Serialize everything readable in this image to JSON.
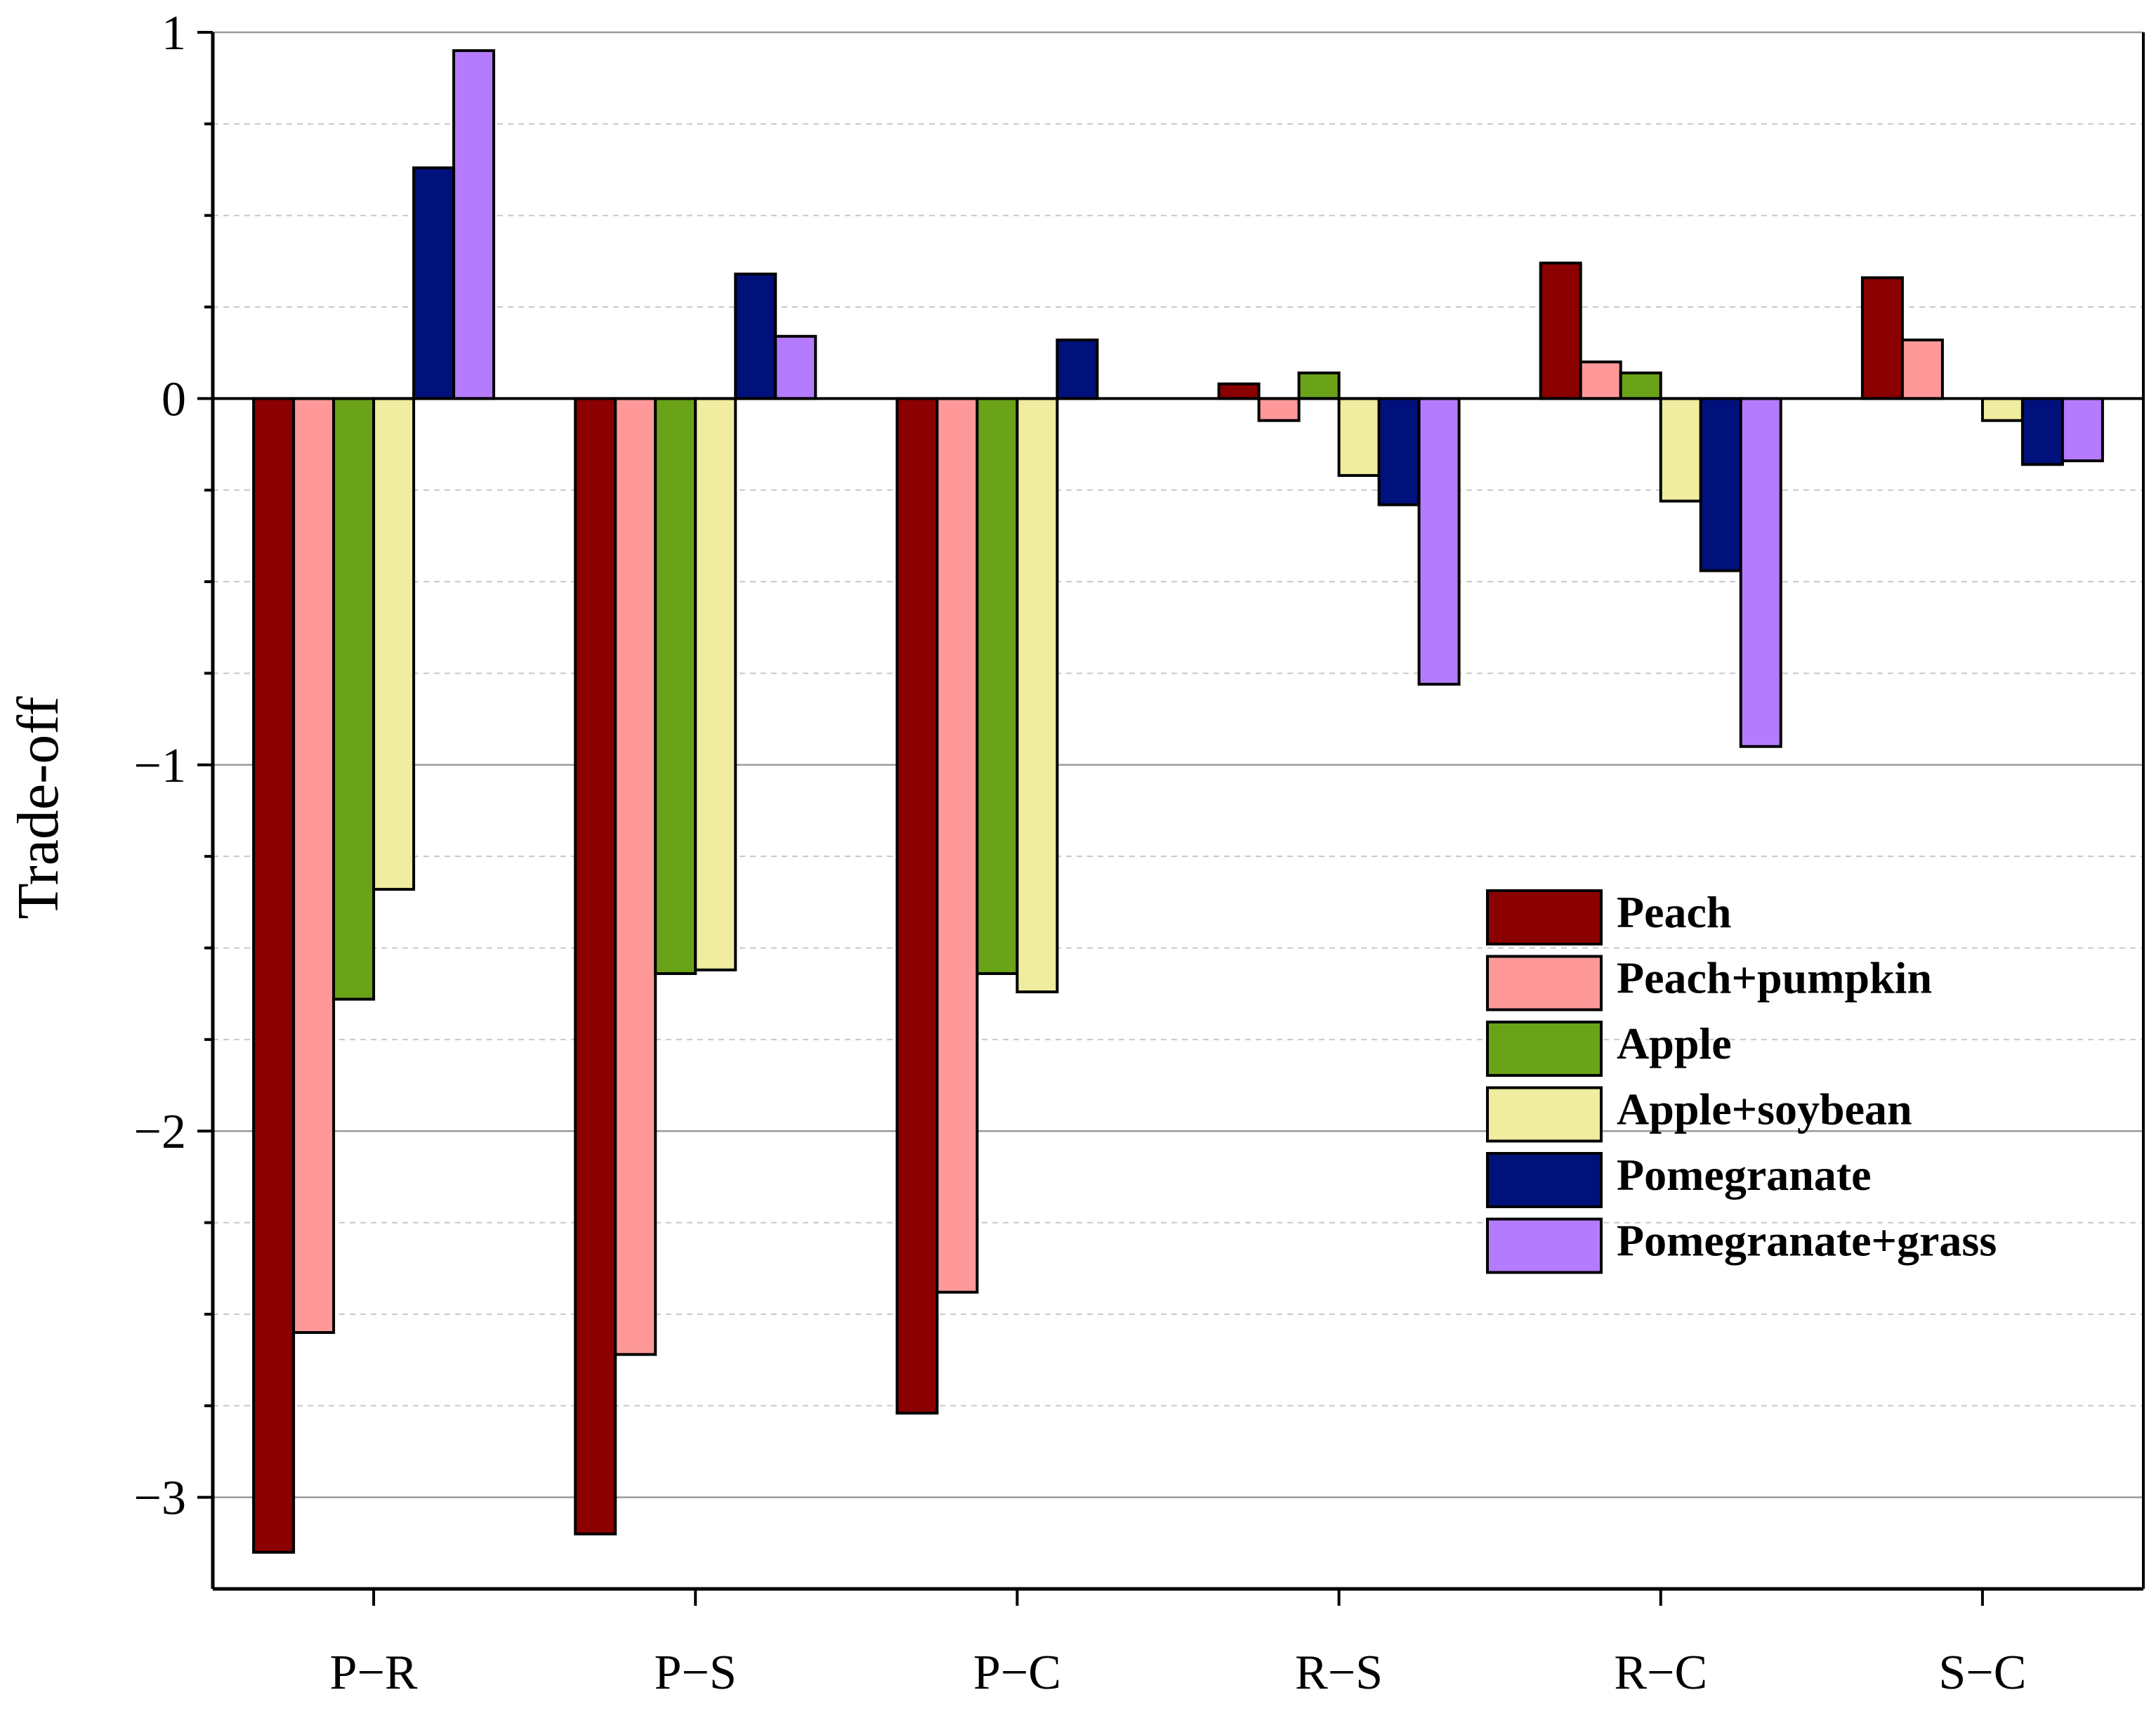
{
  "chart_data": {
    "type": "bar",
    "title": "",
    "xlabel": "",
    "ylabel": "Trade-off",
    "ylim": [
      -3.25,
      1.0
    ],
    "y_ticks": [
      1,
      0,
      -1,
      -2,
      -3
    ],
    "y_tick_labels": [
      "1",
      "0",
      "−1",
      "−2",
      "−3"
    ],
    "grid": true,
    "legend_position": "right-center",
    "categories": [
      "P−R",
      "P−S",
      "P−C",
      "R−S",
      "R−C",
      "S−C"
    ],
    "series": [
      {
        "name": "Peach",
        "color": "#8b0000",
        "values": [
          -3.15,
          -3.1,
          -2.77,
          0.04,
          0.37,
          0.33
        ]
      },
      {
        "name": "Peach+pumpkin",
        "color": "#ff9999",
        "values": [
          -2.55,
          -2.61,
          -2.44,
          -0.06,
          0.1,
          0.16
        ]
      },
      {
        "name": "Apple",
        "color": "#6aa318",
        "values": [
          -1.64,
          -1.57,
          -1.57,
          0.07,
          0.07,
          0.0
        ]
      },
      {
        "name": "Apple+soybean",
        "color": "#f0eca0",
        "values": [
          -1.34,
          -1.56,
          -1.62,
          -0.21,
          -0.28,
          -0.06
        ]
      },
      {
        "name": "Pomegranate",
        "color": "#00117c",
        "values": [
          0.63,
          0.34,
          0.16,
          -0.29,
          -0.47,
          -0.18
        ]
      },
      {
        "name": "Pomegranate+grass",
        "color": "#b57bff",
        "values": [
          0.95,
          0.17,
          0.0,
          -0.78,
          -0.95,
          -0.17
        ]
      }
    ]
  }
}
